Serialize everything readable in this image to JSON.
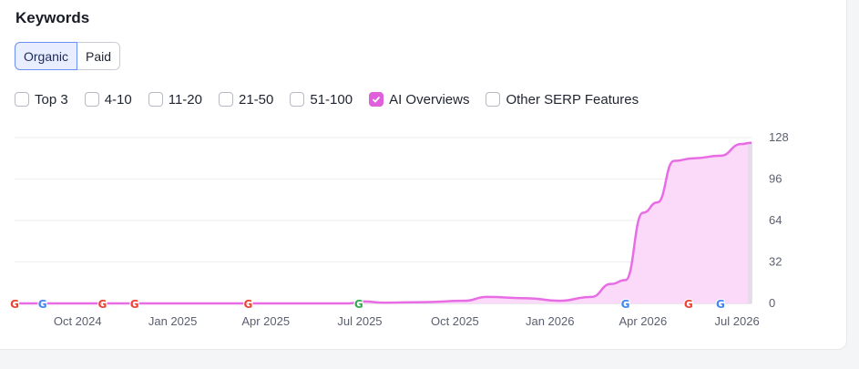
{
  "header": {
    "title": "Keywords"
  },
  "tabs": [
    {
      "label": "Organic",
      "active": true
    },
    {
      "label": "Paid",
      "active": false
    }
  ],
  "filters": [
    {
      "label": "Top 3",
      "checked": false
    },
    {
      "label": "4-10",
      "checked": false
    },
    {
      "label": "11-20",
      "checked": false
    },
    {
      "label": "21-50",
      "checked": false
    },
    {
      "label": "51-100",
      "checked": false
    },
    {
      "label": "AI Overviews",
      "checked": true
    },
    {
      "label": "Other SERP Features",
      "checked": false
    }
  ],
  "colors": {
    "series": "#e86ce3",
    "fill": "#fbd9f8",
    "accent": "#6b8ff2"
  },
  "markers": {
    "icon": "google-icon",
    "letter": "G"
  },
  "chart_data": {
    "type": "area",
    "x_labels": [
      "Oct 2024",
      "Jan 2025",
      "Apr 2025",
      "Jul 2025",
      "Oct 2025",
      "Jan 2026",
      "Apr 2026",
      "Jul 2026"
    ],
    "y_ticks": [
      0,
      32,
      64,
      96,
      128
    ],
    "ylim": [
      0,
      128
    ],
    "xlim": [
      "2024-08-01",
      "2026-07-15"
    ],
    "grid": true,
    "series": [
      {
        "values": [
          [
            "2024-08-01",
            0
          ],
          [
            "2024-10-01",
            0
          ],
          [
            "2025-01-01",
            0
          ],
          [
            "2025-04-01",
            0
          ],
          [
            "2025-06-20",
            0
          ],
          [
            "2025-07-05",
            1.5
          ],
          [
            "2025-07-25",
            0.5
          ],
          [
            "2025-09-01",
            1
          ],
          [
            "2025-10-10",
            2
          ],
          [
            "2025-11-01",
            5
          ],
          [
            "2025-12-10",
            4
          ],
          [
            "2026-01-10",
            2
          ],
          [
            "2026-02-10",
            5
          ],
          [
            "2026-03-01",
            15
          ],
          [
            "2026-03-15",
            18
          ],
          [
            "2026-04-01",
            70
          ],
          [
            "2026-04-15",
            78
          ],
          [
            "2026-05-01",
            110
          ],
          [
            "2026-05-20",
            112
          ],
          [
            "2026-06-15",
            114
          ],
          [
            "2026-07-05",
            123
          ],
          [
            "2026-07-15",
            124
          ]
        ]
      }
    ],
    "google_markers": [
      "2024-08-01",
      "2024-08-28",
      "2024-10-25",
      "2024-11-25",
      "2025-03-15",
      "2025-06-30",
      "2026-03-15",
      "2026-05-15",
      "2026-06-15"
    ]
  }
}
